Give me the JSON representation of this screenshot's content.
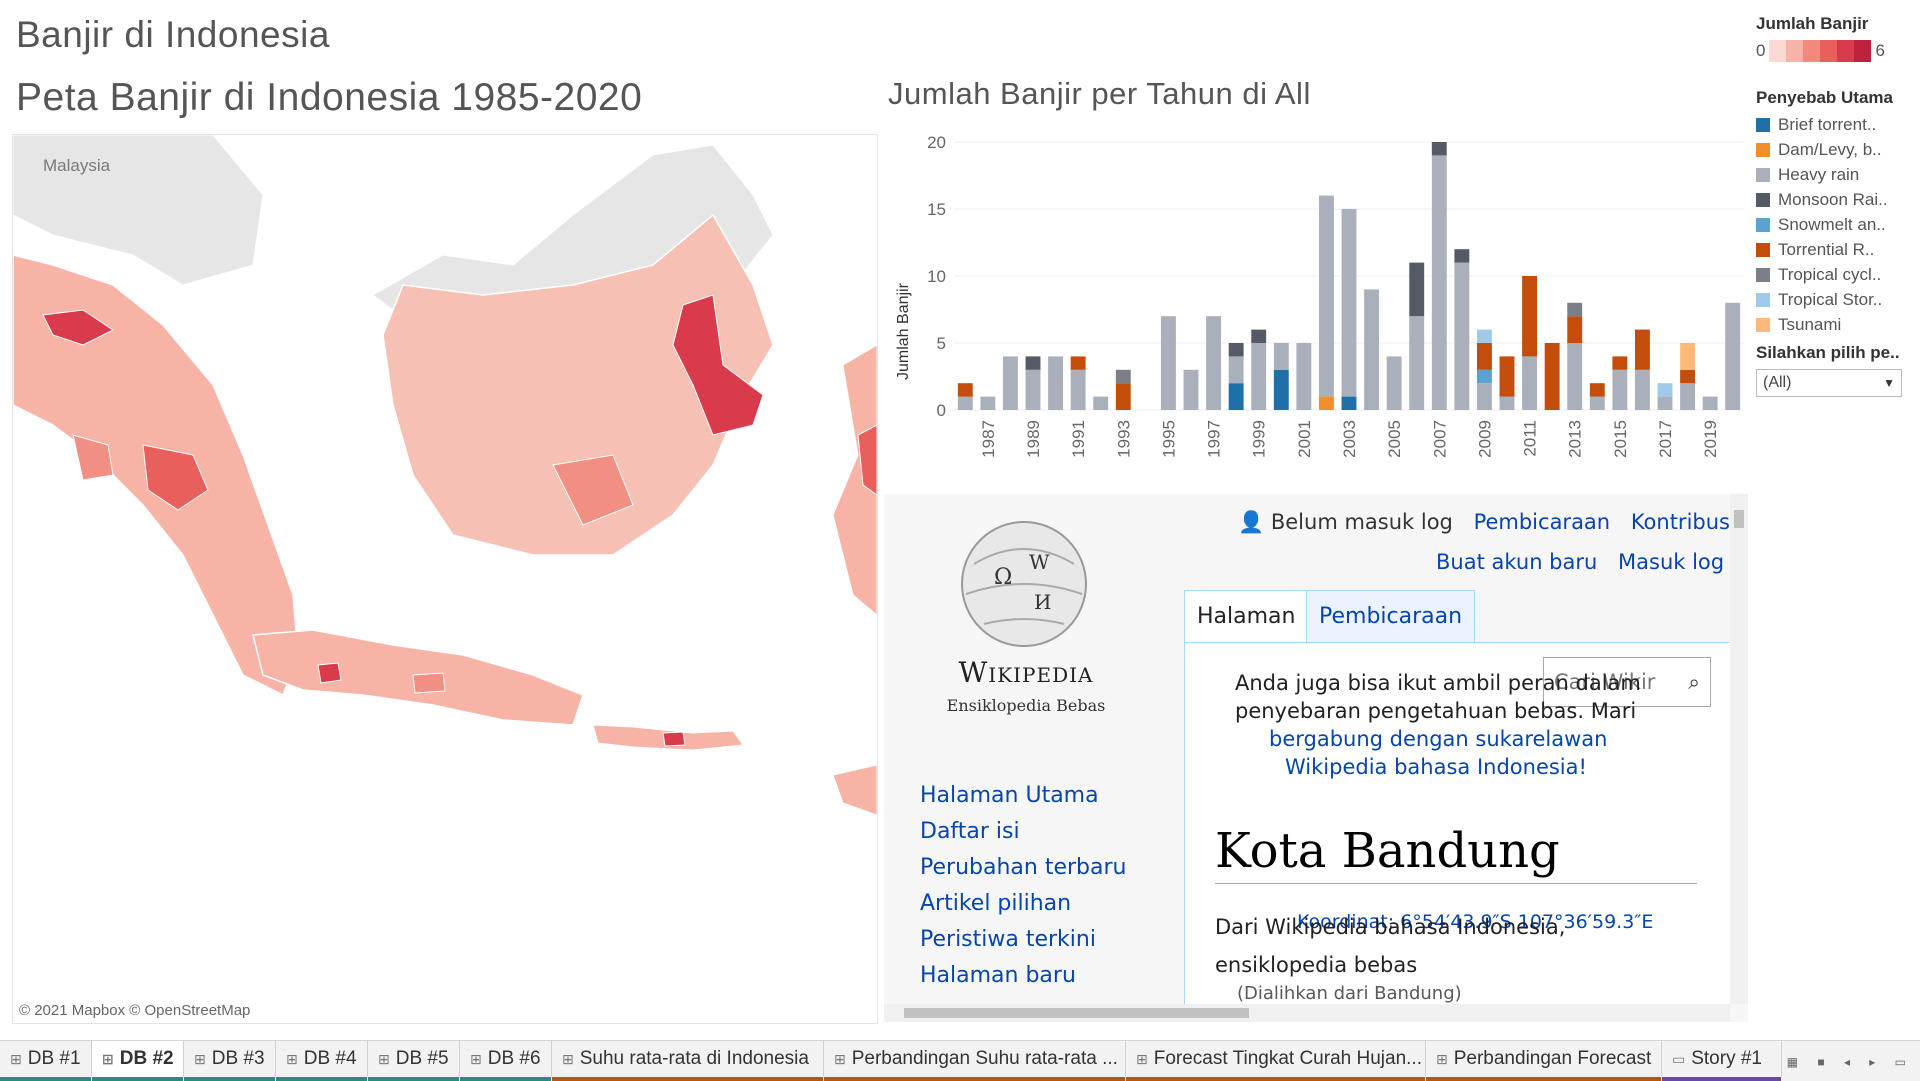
{
  "page_title": "Banjir di Indonesia",
  "map": {
    "title": "Peta Banjir di Indonesia 1985-2020",
    "country_label": "Malaysia",
    "attribution": "© 2021 Mapbox © OpenStreetMap",
    "colors": {
      "low": "#f7c6bc",
      "mid": "#f08f82",
      "high": "#d93a4c",
      "land_other": "#e6e6e6",
      "water": "#ffffff",
      "border": "#ffffff"
    }
  },
  "chart": {
    "title": "Jumlah Banjir per Tahun di All",
    "ylabel": "Jumlah Banjir"
  },
  "chart_data": {
    "type": "bar",
    "stacked": true,
    "x": [
      1986,
      1987,
      1988,
      1989,
      1990,
      1991,
      1992,
      1993,
      1994,
      1995,
      1996,
      1997,
      1998,
      1999,
      2000,
      2001,
      2002,
      2003,
      2004,
      2005,
      2006,
      2007,
      2008,
      2009,
      2010,
      2011,
      2012,
      2013,
      2014,
      2015,
      2016,
      2017,
      2018,
      2019,
      2020
    ],
    "xticks": [
      "1987",
      "1989",
      "1991",
      "1993",
      "1995",
      "1997",
      "1999",
      "2001",
      "2003",
      "2005",
      "2007",
      "2009",
      "2011",
      "2013",
      "2015",
      "2017",
      "2019"
    ],
    "yticks": [
      "0",
      "5",
      "10",
      "15",
      "20"
    ],
    "ylim": [
      0,
      20
    ],
    "grid": "horizontal",
    "series": [
      {
        "name": "Brief torrent..",
        "color": "#1f6fa8",
        "values": [
          0,
          0,
          0,
          0,
          0,
          0,
          0,
          0,
          0,
          0,
          0,
          0,
          2,
          0,
          3,
          0,
          0,
          1,
          0,
          0,
          0,
          0,
          0,
          0,
          0,
          0,
          0,
          0,
          0,
          0,
          0,
          0,
          0,
          0,
          0
        ]
      },
      {
        "name": "Dam/Levy, b..",
        "color": "#f28e2b",
        "values": [
          0,
          0,
          0,
          0,
          0,
          0,
          0,
          0,
          0,
          0,
          0,
          0,
          0,
          0,
          0,
          0,
          1,
          0,
          0,
          0,
          0,
          0,
          0,
          0,
          0,
          0,
          0,
          0,
          0,
          0,
          0,
          0,
          0,
          0,
          0
        ]
      },
      {
        "name": "Heavy rain",
        "color": "#a9b0bb",
        "values": [
          1,
          1,
          4,
          3,
          4,
          3,
          1,
          0,
          0,
          7,
          3,
          7,
          2,
          5,
          2,
          5,
          15,
          14,
          9,
          4,
          7,
          19,
          11,
          2,
          1,
          4,
          0,
          5,
          1,
          3,
          3,
          1,
          2,
          1,
          8
        ]
      },
      {
        "name": "Monsoon Rai..",
        "color": "#555b66",
        "values": [
          0,
          0,
          0,
          1,
          0,
          0,
          0,
          0,
          0,
          0,
          0,
          0,
          1,
          1,
          0,
          0,
          0,
          0,
          0,
          0,
          4,
          1,
          1,
          0,
          0,
          0,
          0,
          0,
          0,
          0,
          0,
          0,
          0,
          0,
          0
        ]
      },
      {
        "name": "Snowmelt an..",
        "color": "#5aa3d0",
        "values": [
          0,
          0,
          0,
          0,
          0,
          0,
          0,
          0,
          0,
          0,
          0,
          0,
          0,
          0,
          0,
          0,
          0,
          0,
          0,
          0,
          0,
          0,
          0,
          1,
          0,
          0,
          0,
          0,
          0,
          0,
          0,
          0,
          0,
          0,
          0
        ]
      },
      {
        "name": "Torrential R..",
        "color": "#c44d0b",
        "values": [
          1,
          0,
          0,
          0,
          0,
          1,
          0,
          2,
          0,
          0,
          0,
          0,
          0,
          0,
          0,
          0,
          0,
          0,
          0,
          0,
          0,
          0,
          0,
          2,
          3,
          6,
          5,
          2,
          1,
          1,
          3,
          0,
          1,
          0,
          0
        ]
      },
      {
        "name": "Tropical cycl..",
        "color": "#7b7f88",
        "values": [
          0,
          0,
          0,
          0,
          0,
          0,
          0,
          1,
          0,
          0,
          0,
          0,
          0,
          0,
          0,
          0,
          0,
          0,
          0,
          0,
          0,
          0,
          0,
          0,
          0,
          0,
          0,
          1,
          0,
          0,
          0,
          0,
          0,
          0,
          0
        ]
      },
      {
        "name": "Tropical Stor..",
        "color": "#a0cbe8",
        "values": [
          0,
          0,
          0,
          0,
          0,
          0,
          0,
          0,
          0,
          0,
          0,
          0,
          0,
          0,
          0,
          0,
          0,
          0,
          0,
          0,
          0,
          0,
          0,
          1,
          0,
          0,
          0,
          0,
          0,
          0,
          0,
          1,
          0,
          0,
          0
        ]
      },
      {
        "name": "Tsunami",
        "color": "#fdb97a",
        "values": [
          0,
          0,
          0,
          0,
          0,
          0,
          0,
          0,
          0,
          0,
          0,
          0,
          0,
          0,
          0,
          0,
          0,
          0,
          0,
          0,
          0,
          0,
          0,
          0,
          0,
          0,
          0,
          0,
          0,
          0,
          0,
          0,
          2,
          0,
          0
        ]
      }
    ]
  },
  "legend": {
    "count_title": "Jumlah Banjir",
    "count_min": "0",
    "count_max": "6",
    "ramp_colors": [
      "#fcd9d2",
      "#f8b3a8",
      "#f3897c",
      "#e85f5b",
      "#d93a4c",
      "#c0213f"
    ],
    "cause_title": "Penyebab Utama",
    "filter_title": "Silahkan pilih pe..",
    "filter_value": "(All)"
  },
  "wiki": {
    "user": "Belum masuk log",
    "top_links": [
      "Pembicaraan",
      "Kontribusi"
    ],
    "top_links2": [
      "Buat akun baru",
      "Masuk log"
    ],
    "tab_page": "Halaman",
    "tab_talk": "Pembicaraan",
    "search_placeholder": "Cari Wikir",
    "logo_word": "Wikipedia",
    "logo_tagline": "Ensiklopedia Bebas",
    "notice_line1": "Anda juga bisa ikut ambil peran dalam",
    "notice_line2": "penyebaran pengetahuan bebas. Mari",
    "notice_link1": "bergabung dengan sukarelawan",
    "notice_link2": "Wikipedia bahasa Indonesia!",
    "article_title": "Kota Bandung",
    "coordinates": "Koordinat: 6°54′43.9″S 107°36′59.3″E",
    "from_line": "Dari Wikipedia bahasa Indonesia,",
    "from_line2": "ensiklopedia bebas",
    "redirect": "(Dialihkan dari Bandung)",
    "sidebar": [
      "Halaman Utama",
      "Daftar isi",
      "Perubahan terbaru",
      "Artikel pilihan",
      "Peristiwa terkini",
      "Halaman baru"
    ]
  },
  "tabs": [
    {
      "label": "DB #1",
      "icon": "grid-icon",
      "color": "#2b8a84"
    },
    {
      "label": "DB #2",
      "icon": "grid-icon",
      "color": "#2b8a84",
      "active": true
    },
    {
      "label": "DB #3",
      "icon": "grid-icon",
      "color": "#2b8a84"
    },
    {
      "label": "DB #4",
      "icon": "grid-icon",
      "color": "#2b8a84"
    },
    {
      "label": "DB #5",
      "icon": "grid-icon",
      "color": "#2b8a84"
    },
    {
      "label": "DB #6",
      "icon": "grid-icon",
      "color": "#2b8a84"
    },
    {
      "label": "Suhu rata-rata di Indonesia",
      "icon": "grid-icon",
      "color": "#b8560b"
    },
    {
      "label": "Perbandingan Suhu rata-rata ...",
      "icon": "grid-icon",
      "color": "#b8560b"
    },
    {
      "label": "Forecast Tingkat Curah Hujan...",
      "icon": "grid-icon",
      "color": "#b8560b"
    },
    {
      "label": "Perbandingan Forecast",
      "icon": "grid-icon",
      "color": "#b8560b"
    },
    {
      "label": "Story #1",
      "icon": "story-icon",
      "color": "#6a4a9a"
    }
  ]
}
